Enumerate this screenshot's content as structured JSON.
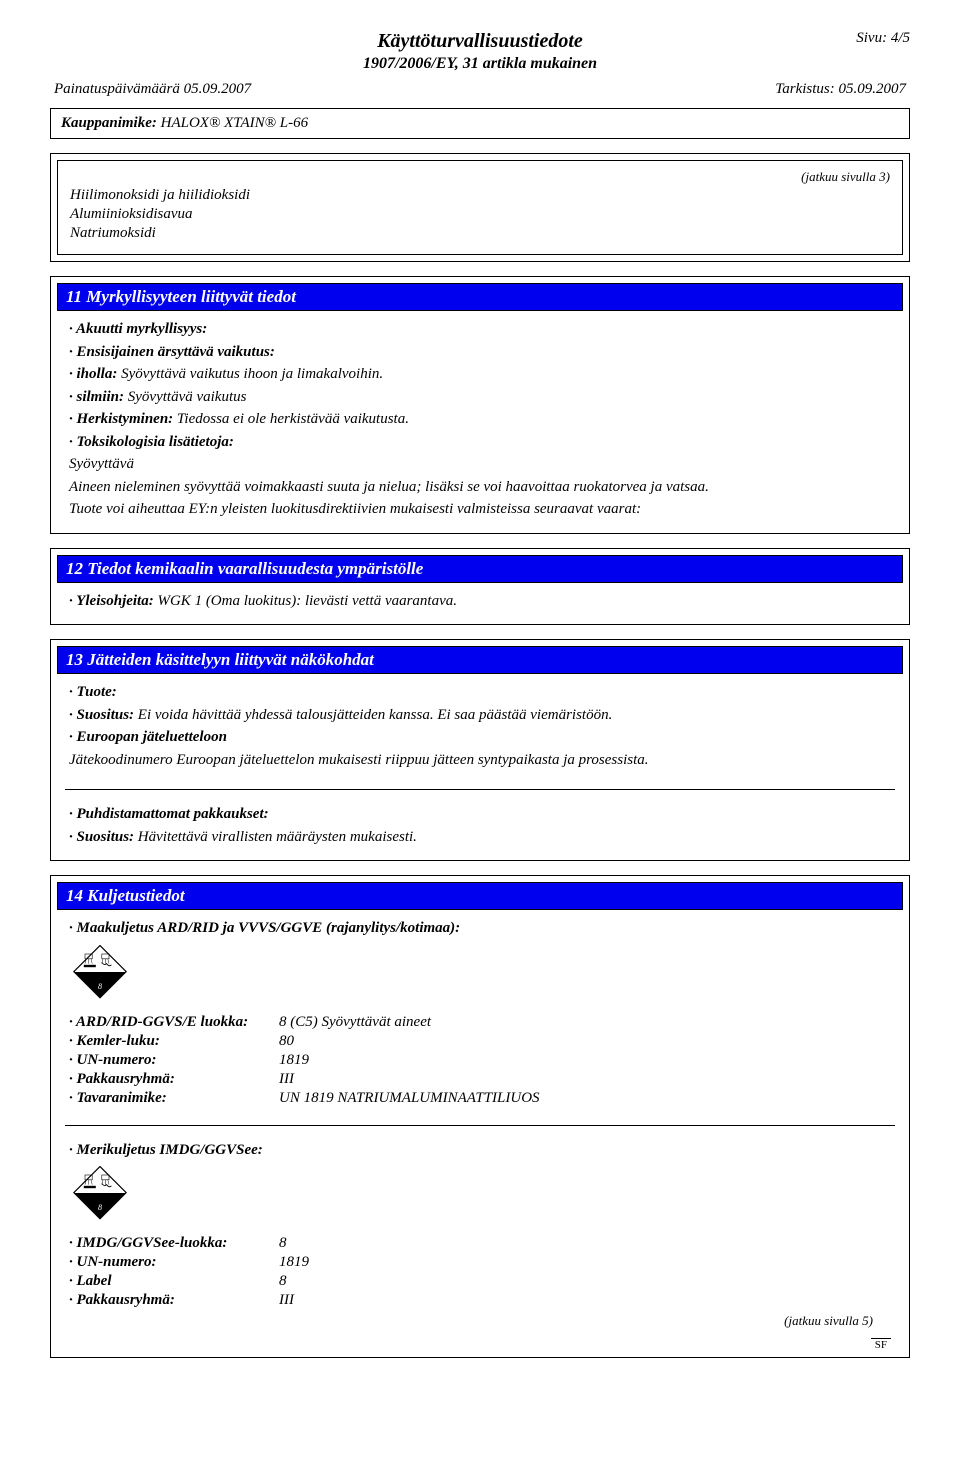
{
  "header": {
    "page_num": "Sivu: 4/5",
    "title": "Käyttöturvallisuustiedote",
    "subtitle": "1907/2006/EY, 31 artikla mukainen",
    "print_date_label": "Painatuspäivämäärä 05.09.2007",
    "revision_label": "Tarkistus: 05.09.2007"
  },
  "product": {
    "label": "Kauppanimike:",
    "name": "HALOX® XTAIN® L-66"
  },
  "cont_from": "(jatkuu sivulla 3)",
  "combustion": {
    "items": [
      "Hiilimonoksidi ja hiilidioksidi",
      "Alumiinioksidisavua",
      "Natriumoksidi"
    ]
  },
  "section11": {
    "heading": "11 Myrkyllisyyteen liittyvät tiedot",
    "acute_label": "· Akuutti myrkyllisyys:",
    "primary_label": "· Ensisijainen ärsyttävä vaikutus:",
    "skin_label": "· iholla:",
    "skin_text": "Syövyttävä vaikutus ihoon ja limakalvoihin.",
    "eyes_label": "· silmiin:",
    "eyes_text": "Syövyttävä vaikutus",
    "sens_label": "· Herkistyminen:",
    "sens_text": "Tiedossa ei ole herkistävää vaikutusta.",
    "tox_label": "· Toksikologisia lisätietoja:",
    "tox_line1": "Syövyttävä",
    "tox_line2": "Aineen nieleminen syövyttää voimakkaasti suuta ja nielua; lisäksi se voi haavoittaa ruokatorvea ja vatsaa.",
    "tox_line3": "Tuote voi aiheuttaa EY:n yleisten luokitusdirektiivien mukaisesti valmisteissa seuraavat vaarat:"
  },
  "section12": {
    "heading": "12 Tiedot kemikaalin vaarallisuudesta ympäristölle",
    "general_label": "· Yleisohjeita:",
    "general_text": "WGK 1 (Oma luokitus): lievästi vettä vaarantava."
  },
  "section13": {
    "heading": "13 Jätteiden käsittelyyn liittyvät näkökohdat",
    "product_label": "· Tuote:",
    "rec_label": "· Suositus:",
    "rec_text": "Ei voida hävittää yhdessä talousjätteiden kanssa. Ei saa päästää viemäristöön.",
    "ewc_label": "· Euroopan jäteluetteloon",
    "ewc_text": "Jätekoodinumero Euroopan jäteluettelon mukaisesti riippuu jätteen syntypaikasta ja prosessista.",
    "unclean_label": "· Puhdistamattomat pakkaukset:",
    "unclean_rec_label": "· Suositus:",
    "unclean_rec_text": "Hävitettävä virallisten määräysten mukaisesti."
  },
  "section14": {
    "heading": "14 Kuljetustiedot",
    "land_label": "· Maakuljetus ARD/RID ja VVVS/GGVE (rajanylitys/kotimaa):",
    "rows1": [
      {
        "k": "· ARD/RID-GGVS/E luokka:",
        "v": "8 (C5) Syövyttävät aineet"
      },
      {
        "k": "· Kemler-luku:",
        "v": "80"
      },
      {
        "k": "· UN-numero:",
        "v": "1819"
      },
      {
        "k": "· Pakkausryhmä:",
        "v": "III"
      },
      {
        "k": "· Tavaranimike:",
        "v": "UN 1819 NATRIUMALUMINAATTILIUOS"
      }
    ],
    "sea_label": "· Merikuljetus IMDG/GGVSee:",
    "rows2": [
      {
        "k": "· IMDG/GGVSee-luokka:",
        "v": "8"
      },
      {
        "k": "· UN-numero:",
        "v": "1819"
      },
      {
        "k": "· Label",
        "v": "8"
      },
      {
        "k": "· Pakkausryhmä:",
        "v": "III"
      }
    ]
  },
  "cont_to": "(jatkuu sivulla 5)",
  "sf": "SF",
  "icon": {
    "fill": "#000000",
    "size": 54
  }
}
